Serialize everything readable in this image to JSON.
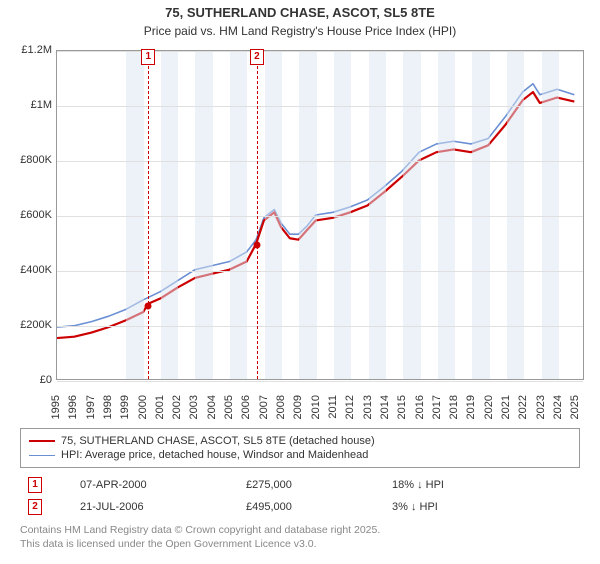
{
  "title": "75, SUTHERLAND CHASE, ASCOT, SL5 8TE",
  "subtitle": "Price paid vs. HM Land Registry's House Price Index (HPI)",
  "chart": {
    "type": "line",
    "background_color": "#ffffff",
    "grid_color": "#e0e0e0",
    "axis_color": "#999999",
    "band_color": "#dce6f1",
    "series": [
      {
        "id": "price_paid",
        "label": "75, SUTHERLAND CHASE, ASCOT, SL5 8TE (detached house)",
        "color": "#cc0000",
        "width": 2.2
      },
      {
        "id": "hpi",
        "label": "HPI: Average price, detached house, Windsor and Maidenhead",
        "color": "#6a8fd4",
        "width": 1.6
      }
    ],
    "x": {
      "min": 1995,
      "max": 2025.5,
      "ticks": [
        1995,
        1996,
        1997,
        1998,
        1999,
        2000,
        2001,
        2002,
        2003,
        2004,
        2005,
        2006,
        2007,
        2008,
        2009,
        2010,
        2011,
        2012,
        2013,
        2014,
        2015,
        2016,
        2017,
        2018,
        2019,
        2020,
        2021,
        2022,
        2023,
        2024,
        2025
      ],
      "label_rotation": -90,
      "label_fontsize": 11
    },
    "y": {
      "min": 0,
      "max": 1200000,
      "ticks": [
        {
          "v": 0,
          "l": "£0"
        },
        {
          "v": 200000,
          "l": "£200K"
        },
        {
          "v": 400000,
          "l": "£400K"
        },
        {
          "v": 600000,
          "l": "£600K"
        },
        {
          "v": 800000,
          "l": "£800K"
        },
        {
          "v": 1000000,
          "l": "£1M"
        },
        {
          "v": 1200000,
          "l": "£1.2M"
        }
      ],
      "label_fontsize": 11
    },
    "sale_markers": [
      {
        "n": "1",
        "x": 2000.27,
        "y": 275000
      },
      {
        "n": "2",
        "x": 2006.55,
        "y": 495000
      }
    ],
    "hpi_points": [
      [
        1995,
        190000
      ],
      [
        1996,
        195000
      ],
      [
        1997,
        210000
      ],
      [
        1998,
        230000
      ],
      [
        1999,
        255000
      ],
      [
        2000,
        290000
      ],
      [
        2001,
        320000
      ],
      [
        2002,
        360000
      ],
      [
        2003,
        400000
      ],
      [
        2004,
        415000
      ],
      [
        2005,
        430000
      ],
      [
        2006,
        465000
      ],
      [
        2006.55,
        510000
      ],
      [
        2007,
        590000
      ],
      [
        2007.6,
        620000
      ],
      [
        2008,
        570000
      ],
      [
        2008.5,
        530000
      ],
      [
        2009,
        530000
      ],
      [
        2009.5,
        560000
      ],
      [
        2010,
        600000
      ],
      [
        2011,
        610000
      ],
      [
        2012,
        630000
      ],
      [
        2013,
        655000
      ],
      [
        2014,
        705000
      ],
      [
        2015,
        760000
      ],
      [
        2016,
        830000
      ],
      [
        2017,
        860000
      ],
      [
        2018,
        870000
      ],
      [
        2019,
        860000
      ],
      [
        2020,
        880000
      ],
      [
        2021,
        960000
      ],
      [
        2022,
        1050000
      ],
      [
        2022.6,
        1080000
      ],
      [
        2023,
        1040000
      ],
      [
        2024,
        1060000
      ],
      [
        2025,
        1040000
      ]
    ],
    "price_paid_points": [
      [
        1995,
        150000
      ],
      [
        1996,
        155000
      ],
      [
        1997,
        170000
      ],
      [
        1998,
        190000
      ],
      [
        1999,
        215000
      ],
      [
        2000,
        245000
      ],
      [
        2000.27,
        275000
      ],
      [
        2001,
        295000
      ],
      [
        2002,
        335000
      ],
      [
        2003,
        370000
      ],
      [
        2004,
        385000
      ],
      [
        2005,
        400000
      ],
      [
        2006,
        430000
      ],
      [
        2006.55,
        495000
      ],
      [
        2007,
        580000
      ],
      [
        2007.6,
        610000
      ],
      [
        2008,
        555000
      ],
      [
        2008.5,
        515000
      ],
      [
        2009,
        510000
      ],
      [
        2009.5,
        545000
      ],
      [
        2010,
        580000
      ],
      [
        2011,
        590000
      ],
      [
        2012,
        610000
      ],
      [
        2013,
        635000
      ],
      [
        2014,
        685000
      ],
      [
        2015,
        740000
      ],
      [
        2016,
        800000
      ],
      [
        2017,
        830000
      ],
      [
        2018,
        840000
      ],
      [
        2019,
        830000
      ],
      [
        2020,
        855000
      ],
      [
        2021,
        930000
      ],
      [
        2022,
        1020000
      ],
      [
        2022.6,
        1050000
      ],
      [
        2023,
        1010000
      ],
      [
        2024,
        1030000
      ],
      [
        2025,
        1015000
      ]
    ]
  },
  "sales": [
    {
      "n": "1",
      "date": "07-APR-2000",
      "price": "£275,000",
      "delta": "18% ↓ HPI"
    },
    {
      "n": "2",
      "date": "21-JUL-2006",
      "price": "£495,000",
      "delta": "3% ↓ HPI"
    }
  ],
  "attribution": {
    "l1": "Contains HM Land Registry data © Crown copyright and database right 2025.",
    "l2": "This data is licensed under the Open Government Licence v3.0."
  }
}
